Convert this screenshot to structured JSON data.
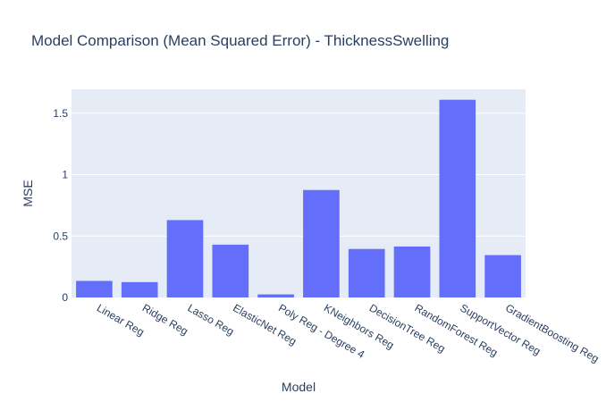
{
  "chart_data": {
    "type": "bar",
    "title": "Model Comparison (Mean Squared Error) - ThicknessSwelling",
    "xlabel": "Model",
    "ylabel": "MSE",
    "categories": [
      "Linear Reg",
      "Ridge Reg",
      "Lasso Reg",
      "ElasticNet Reg",
      "Poly Reg - Degree 4",
      "KNeighbors Reg",
      "DecisionTree Reg",
      "RandomForest Reg",
      "SupportVector Reg",
      "GradientBoosting Reg"
    ],
    "values": [
      0.135,
      0.125,
      0.63,
      0.43,
      0.025,
      0.875,
      0.395,
      0.415,
      1.61,
      0.345
    ],
    "yticks": [
      0,
      0.5,
      1,
      1.5
    ],
    "ytick_labels": [
      "0",
      "0.5",
      "1",
      "1.5"
    ],
    "ylim": [
      0,
      1.695
    ],
    "grid": true,
    "colors": {
      "bar": "#636efa",
      "plot_bg": "#e5ecf6",
      "grid": "#ffffff",
      "text": "#2a3f5f"
    }
  }
}
